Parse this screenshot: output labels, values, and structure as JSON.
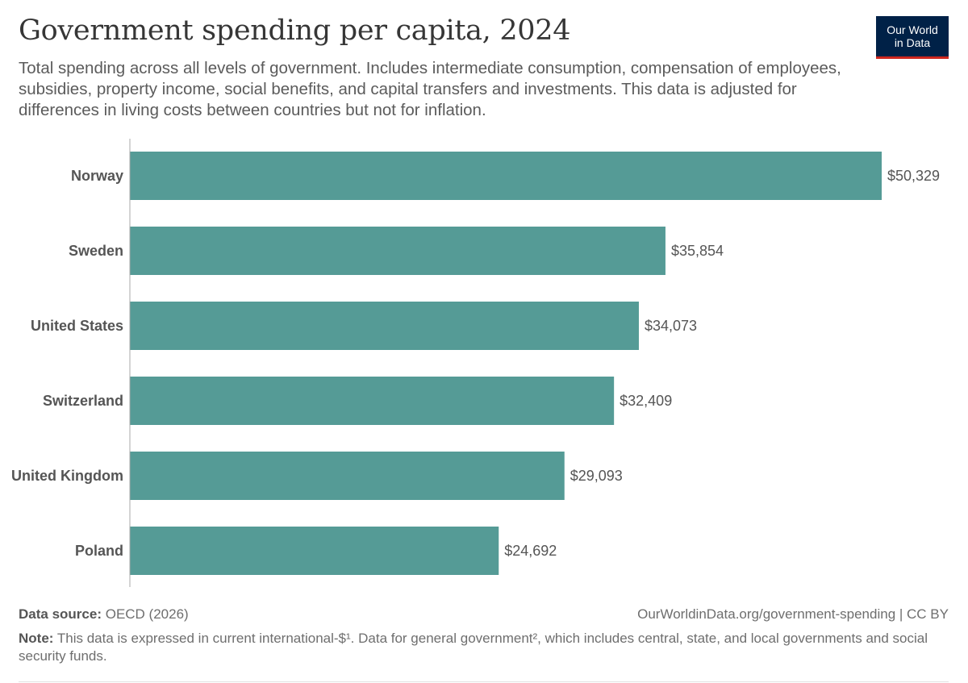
{
  "header": {
    "title": "Government spending per capita, 2024",
    "subtitle": "Total spending across all levels of government. Includes intermediate consumption, compensation of employees, subsidies, property income, social benefits, and capital transfers and investments. This data is adjusted for differences in living costs between countries but not for inflation.",
    "logo_line1": "Our World",
    "logo_line2": "in Data"
  },
  "colors": {
    "bar": "#559b96",
    "axis": "#a8a8a8",
    "logo_bg": "#002147",
    "logo_accent": "#ce261e"
  },
  "chart_data": {
    "type": "bar",
    "orientation": "horizontal",
    "title": "Government spending per capita, 2024",
    "categories": [
      "Norway",
      "Sweden",
      "United States",
      "Switzerland",
      "United Kingdom",
      "Poland"
    ],
    "values": [
      50329,
      35854,
      34073,
      32409,
      29093,
      24692
    ],
    "value_labels": [
      "$50,329",
      "$35,854",
      "$34,073",
      "$32,409",
      "$29,093",
      "$24,692"
    ],
    "xlim": [
      0,
      50329
    ],
    "xlabel": "",
    "ylabel": "",
    "grid": false
  },
  "footer": {
    "source_label": "Data source:",
    "source_text": "OECD (2026)",
    "url": "OurWorldinData.org/government-spending",
    "license": "CC BY",
    "note_label": "Note:",
    "note_text": "This data is expressed in current international-$¹. Data for general government², which includes central, state, and local governments and social security funds."
  }
}
